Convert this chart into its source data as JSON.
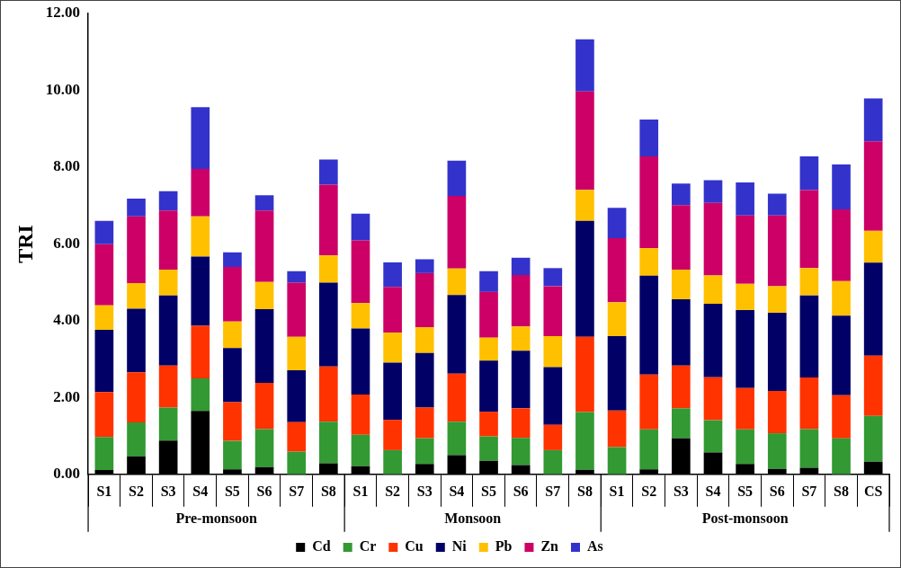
{
  "chart_data": {
    "type": "bar",
    "stacked": true,
    "ylabel": "TRI",
    "categories": [
      "S1",
      "S2",
      "S3",
      "S4",
      "S5",
      "S6",
      "S7",
      "S8",
      "S1",
      "S2",
      "S3",
      "S4",
      "S5",
      "S6",
      "S7",
      "S8",
      "S1",
      "S2",
      "S3",
      "S4",
      "S5",
      "S6",
      "S7",
      "S8",
      "CS"
    ],
    "annotations": [
      "Pre-monsoon",
      "Monsoon",
      "Post-monsoon"
    ],
    "ylim": [
      0,
      12
    ],
    "yticks": [
      {
        "value": 0,
        "label": "0.00"
      },
      {
        "value": 2,
        "label": "2.00"
      },
      {
        "value": 4,
        "label": "4.00"
      },
      {
        "value": 6,
        "label": "6.00"
      },
      {
        "value": 8,
        "label": "8.00"
      },
      {
        "value": 10,
        "label": "10.00"
      },
      {
        "value": 12,
        "label": "12.00"
      }
    ],
    "grid": false,
    "legend": "bottom",
    "series": [
      {
        "name": "Cd",
        "color": "#000000",
        "values": [
          0.11,
          0.47,
          0.88,
          1.65,
          0.13,
          0.19,
          0,
          0.29,
          0.21,
          0,
          0.27,
          0.5,
          0.35,
          0.24,
          0,
          0.12,
          0,
          0.13,
          0.94,
          0.57,
          0.27,
          0.14,
          0.17,
          0,
          0.33
        ]
      },
      {
        "name": "Cr",
        "color": "#339933",
        "values": [
          0.86,
          0.88,
          0.86,
          0.85,
          0.74,
          0.99,
          0.59,
          1.08,
          0.82,
          0.63,
          0.67,
          0.87,
          0.64,
          0.71,
          0.63,
          1.5,
          0.71,
          1.04,
          0.78,
          0.84,
          0.9,
          0.93,
          1.01,
          0.94,
          1.19
        ]
      },
      {
        "name": "Cu",
        "color": "#ff3300",
        "values": [
          1.17,
          1.31,
          1.09,
          1.37,
          1.01,
          1.2,
          0.77,
          1.44,
          1.05,
          0.79,
          0.8,
          1.25,
          0.64,
          0.77,
          0.66,
          1.96,
          0.95,
          1.43,
          1.11,
          1.12,
          1.08,
          1.1,
          1.34,
          1.12,
          1.57
        ]
      },
      {
        "name": "Ni",
        "color": "#000066",
        "values": [
          1.62,
          1.65,
          1.83,
          1.8,
          1.41,
          1.92,
          1.35,
          2.18,
          1.72,
          1.49,
          1.42,
          2.05,
          1.33,
          1.5,
          1.5,
          3.02,
          1.94,
          2.57,
          1.73,
          1.91,
          2.03,
          2.04,
          2.14,
          2.07,
          2.42
        ]
      },
      {
        "name": "Pb",
        "color": "#ffc000",
        "values": [
          0.64,
          0.67,
          0.67,
          1.05,
          0.69,
          0.71,
          0.87,
          0.71,
          0.66,
          0.78,
          0.67,
          0.69,
          0.6,
          0.63,
          0.81,
          0.81,
          0.88,
          0.72,
          0.77,
          0.74,
          0.68,
          0.69,
          0.71,
          0.9,
          0.83
        ]
      },
      {
        "name": "Zn",
        "color": "#cc0066",
        "values": [
          1.59,
          1.74,
          1.54,
          1.23,
          1.42,
          1.86,
          1.41,
          1.84,
          1.63,
          1.19,
          1.41,
          1.89,
          1.19,
          1.34,
          1.3,
          2.56,
          1.67,
          2.39,
          1.68,
          1.89,
          1.78,
          1.84,
          2.03,
          1.87,
          2.33
        ]
      },
      {
        "name": "As",
        "color": "#3333cc",
        "values": [
          0.61,
          0.46,
          0.5,
          1.61,
          0.38,
          0.4,
          0.3,
          0.66,
          0.7,
          0.64,
          0.36,
          0.92,
          0.54,
          0.45,
          0.47,
          1.36,
          0.79,
          0.96,
          0.56,
          0.59,
          0.86,
          0.57,
          0.88,
          1.17,
          1.12
        ]
      }
    ]
  }
}
